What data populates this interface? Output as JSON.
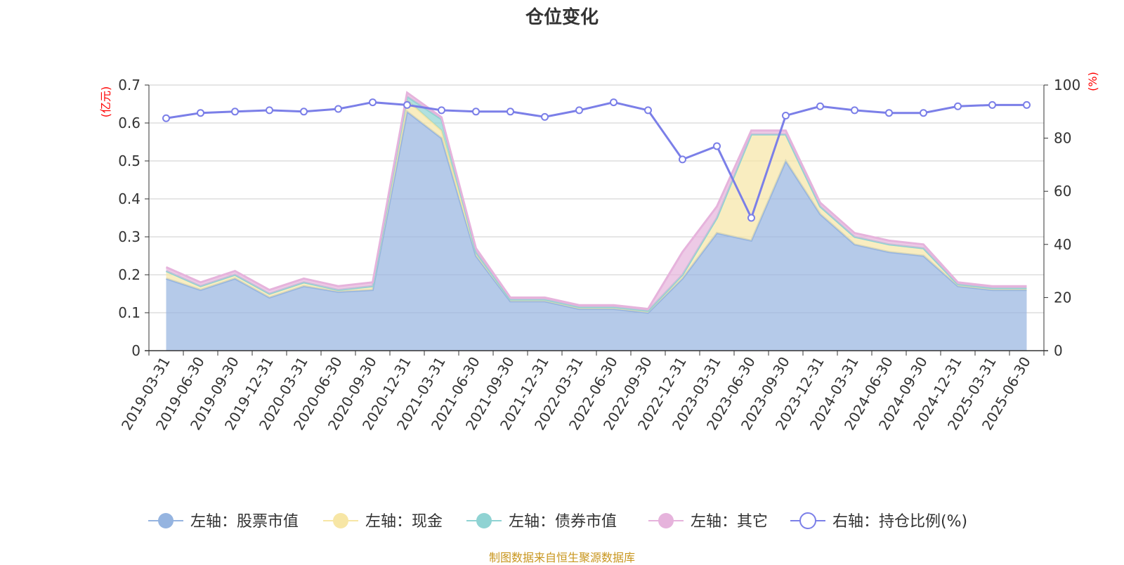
{
  "colors": {
    "stock": "#95b4e0",
    "cash": "#f7e6a5",
    "bond": "#8fd3d3",
    "other": "#e6b3dc",
    "ratio": "#7b7fe8",
    "axis_unit": "#ff0000",
    "source": "#c8961e"
  },
  "chart_data": {
    "type": "area",
    "title": "仓位变化",
    "left_axis": {
      "unit": "(亿元)",
      "ylim": [
        0,
        0.7
      ],
      "ticks": [
        0,
        0.1,
        0.2,
        0.3,
        0.4,
        0.5,
        0.6,
        0.7
      ],
      "tick_labels": [
        "0",
        "0.1",
        "0.2",
        "0.3",
        "0.4",
        "0.5",
        "0.6",
        "0.7"
      ]
    },
    "right_axis": {
      "unit": "(%)",
      "ylim": [
        0,
        100
      ],
      "ticks": [
        0,
        20,
        40,
        60,
        80,
        100
      ],
      "tick_labels": [
        "0",
        "20",
        "40",
        "60",
        "80",
        "100"
      ]
    },
    "grid": true,
    "legend_position": "bottom",
    "x": [
      "2019-03-31",
      "2019-06-30",
      "2019-09-30",
      "2019-12-31",
      "2020-03-31",
      "2020-06-30",
      "2020-09-30",
      "2020-12-31",
      "2021-03-31",
      "2021-06-30",
      "2021-09-30",
      "2021-12-31",
      "2022-03-31",
      "2022-06-30",
      "2022-09-30",
      "2022-12-31",
      "2023-03-31",
      "2023-06-30",
      "2023-09-30",
      "2023-12-31",
      "2024-03-31",
      "2024-06-30",
      "2024-09-30",
      "2024-12-31",
      "2025-03-31",
      "2025-06-30"
    ],
    "series": [
      {
        "name": "左轴：股票市值",
        "axis": "left",
        "stack": true,
        "values": [
          0.19,
          0.16,
          0.19,
          0.14,
          0.17,
          0.155,
          0.16,
          0.63,
          0.56,
          0.25,
          0.13,
          0.13,
          0.11,
          0.11,
          0.1,
          0.19,
          0.31,
          0.29,
          0.5,
          0.36,
          0.28,
          0.26,
          0.25,
          0.17,
          0.16,
          0.16
        ]
      },
      {
        "name": "左轴：现金",
        "axis": "left",
        "stack": true,
        "values": [
          0.02,
          0.01,
          0.01,
          0.01,
          0.01,
          0.005,
          0.01,
          0.03,
          0.02,
          0.01,
          0.005,
          0.005,
          0.005,
          0.005,
          0.005,
          0.01,
          0.04,
          0.28,
          0.07,
          0.02,
          0.02,
          0.02,
          0.02,
          0.005,
          0.005,
          0.005
        ]
      },
      {
        "name": "左轴：债券市值",
        "axis": "left",
        "stack": true,
        "values": [
          0,
          0,
          0,
          0,
          0,
          0,
          0,
          0.01,
          0.03,
          0,
          0,
          0,
          0,
          0,
          0,
          0,
          0,
          0,
          0,
          0,
          0,
          0,
          0,
          0,
          0,
          0
        ]
      },
      {
        "name": "左轴：其它",
        "axis": "left",
        "stack": true,
        "values": [
          0.01,
          0.01,
          0.01,
          0.01,
          0.01,
          0.01,
          0.01,
          0.01,
          0.005,
          0.01,
          0.005,
          0.005,
          0.005,
          0.005,
          0.005,
          0.06,
          0.03,
          0.01,
          0.01,
          0.01,
          0.01,
          0.01,
          0.01,
          0.005,
          0.005,
          0.005
        ]
      },
      {
        "name": "右轴：持仓比例(%)",
        "axis": "right",
        "stack": false,
        "values": [
          87.5,
          89.5,
          90,
          90.5,
          90,
          91,
          93.5,
          92.5,
          90.5,
          90,
          90,
          88,
          90.5,
          93.5,
          90.5,
          72,
          77,
          50,
          88.5,
          92,
          90.5,
          89.5,
          89.5,
          92,
          92.5,
          92.5
        ]
      }
    ]
  },
  "footer": {
    "source": "制图数据来自恒生聚源数据库"
  }
}
